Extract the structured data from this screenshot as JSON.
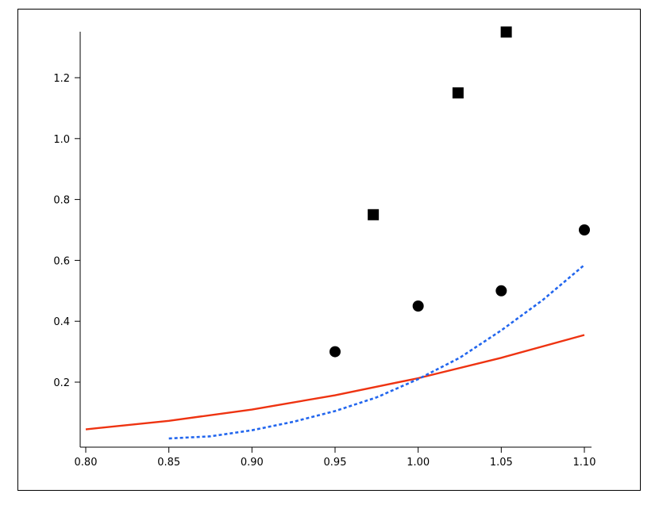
{
  "chart_data": {
    "type": "scatter",
    "title": "",
    "xlabel": "",
    "ylabel": "",
    "xlim": [
      0.79,
      1.11
    ],
    "ylim": [
      -0.005,
      1.37
    ],
    "x_ticks": [
      0.8,
      0.85,
      0.9,
      0.95,
      1.0,
      1.05,
      1.1
    ],
    "x_tick_labels": [
      "0.80",
      "0.85",
      "0.90",
      "0.95",
      "1.00",
      "1.05",
      "1.10"
    ],
    "y_ticks": [
      0.2,
      0.4,
      0.6,
      0.8,
      1.0,
      1.2
    ],
    "y_tick_labels": [
      "0.2",
      "0.4",
      "0.6",
      "0.8",
      "1.0",
      "1.2"
    ],
    "grid": false,
    "legend": "none",
    "series": [
      {
        "marker": "square",
        "color": "#000000",
        "x": [
          0.973,
          1.024,
          1.053
        ],
        "y": [
          0.75,
          1.15,
          1.35
        ]
      },
      {
        "marker": "circle",
        "color": "#000000",
        "x": [
          0.95,
          1.0,
          1.05,
          1.1
        ],
        "y": [
          0.3,
          0.45,
          0.5,
          0.7
        ]
      },
      {
        "line": "solid",
        "color": "#ee3311",
        "x": [
          0.8,
          0.85,
          0.9,
          0.95,
          1.0,
          1.05,
          1.1
        ],
        "y": [
          0.045,
          0.073,
          0.11,
          0.157,
          0.213,
          0.28,
          0.355
        ]
      },
      {
        "line": "dotted",
        "color": "#2266ee",
        "x": [
          0.85,
          0.875,
          0.9,
          0.925,
          0.95,
          0.975,
          1.0,
          1.025,
          1.05,
          1.075,
          1.1
        ],
        "y": [
          0.015,
          0.022,
          0.042,
          0.07,
          0.105,
          0.15,
          0.21,
          0.28,
          0.37,
          0.47,
          0.585
        ]
      }
    ]
  }
}
